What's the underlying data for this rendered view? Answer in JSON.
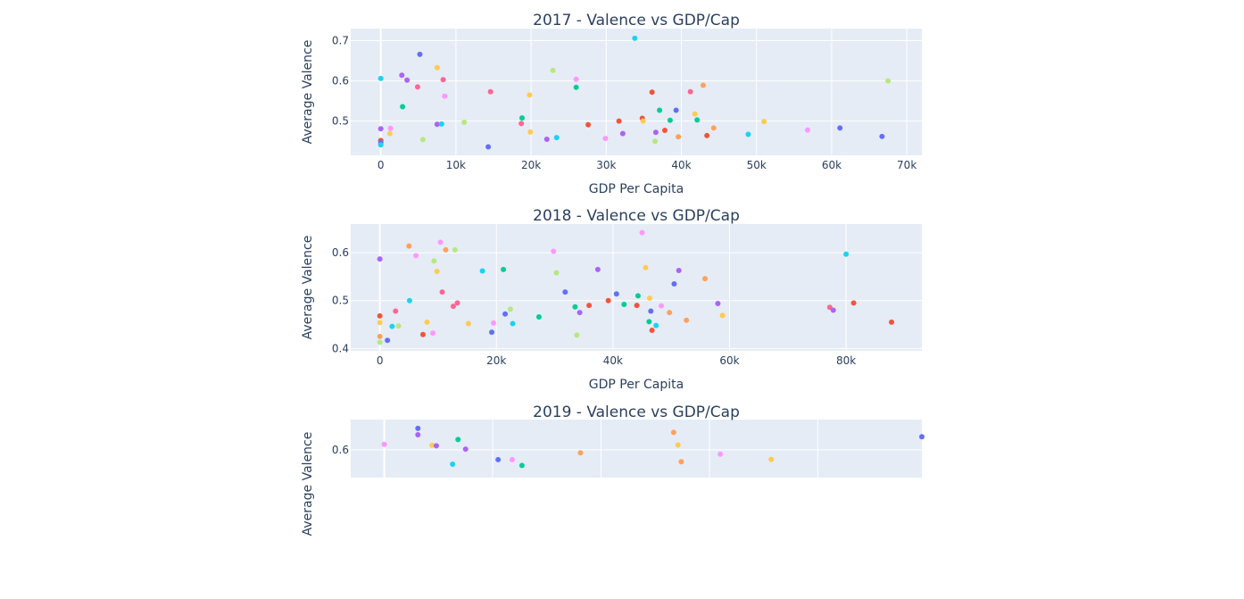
{
  "chart_data": [
    {
      "type": "scatter",
      "title": "2017 - Valence vs GDP/Cap",
      "xlabel": "GDP Per Capita",
      "ylabel": "Average Valence",
      "xlim": [
        -4000,
        72000
      ],
      "ylim": [
        0.415,
        0.73
      ],
      "x_ticks": [
        0,
        10000,
        20000,
        30000,
        40000,
        50000,
        60000,
        70000
      ],
      "x_tick_labels": [
        "0",
        "10k",
        "20k",
        "30k",
        "40k",
        "50k",
        "60k",
        "70k"
      ],
      "y_ticks": [
        0.5,
        0.6,
        0.7
      ],
      "y_tick_labels": [
        "0.5",
        "0.6",
        "0.7"
      ],
      "grid": true,
      "points": [
        {
          "x": 0,
          "y": 0.606,
          "color": "#19d3f3"
        },
        {
          "x": 0,
          "y": 0.481,
          "color": "#ab63fa"
        },
        {
          "x": 0,
          "y": 0.452,
          "color": "#ef553b"
        },
        {
          "x": 0,
          "y": 0.447,
          "color": "#636efa"
        },
        {
          "x": 0,
          "y": 0.441,
          "color": "#19d3f3"
        },
        {
          "x": 1200,
          "y": 0.469,
          "color": "#fecb52"
        },
        {
          "x": 1300,
          "y": 0.482,
          "color": "#ff97ff"
        },
        {
          "x": 2800,
          "y": 0.614,
          "color": "#ab63fa"
        },
        {
          "x": 2900,
          "y": 0.536,
          "color": "#00cc96"
        },
        {
          "x": 3500,
          "y": 0.602,
          "color": "#ab63fa"
        },
        {
          "x": 4900,
          "y": 0.585,
          "color": "#ff6692"
        },
        {
          "x": 5200,
          "y": 0.666,
          "color": "#636efa"
        },
        {
          "x": 5600,
          "y": 0.454,
          "color": "#b6e880"
        },
        {
          "x": 7500,
          "y": 0.633,
          "color": "#fecb52"
        },
        {
          "x": 7500,
          "y": 0.492,
          "color": "#ab63fa"
        },
        {
          "x": 8100,
          "y": 0.493,
          "color": "#19d3f3"
        },
        {
          "x": 8300,
          "y": 0.603,
          "color": "#ff6692"
        },
        {
          "x": 8500,
          "y": 0.562,
          "color": "#ff97ff"
        },
        {
          "x": 11100,
          "y": 0.497,
          "color": "#b6e880"
        },
        {
          "x": 14300,
          "y": 0.436,
          "color": "#636efa"
        },
        {
          "x": 14600,
          "y": 0.573,
          "color": "#ff6692"
        },
        {
          "x": 18700,
          "y": 0.494,
          "color": "#ff6692"
        },
        {
          "x": 18800,
          "y": 0.508,
          "color": "#00cc96"
        },
        {
          "x": 19800,
          "y": 0.565,
          "color": "#fecb52"
        },
        {
          "x": 19900,
          "y": 0.473,
          "color": "#fecb52"
        },
        {
          "x": 22100,
          "y": 0.455,
          "color": "#ab63fa"
        },
        {
          "x": 22900,
          "y": 0.626,
          "color": "#b6e880"
        },
        {
          "x": 23400,
          "y": 0.459,
          "color": "#19d3f3"
        },
        {
          "x": 26000,
          "y": 0.604,
          "color": "#ff97ff"
        },
        {
          "x": 26000,
          "y": 0.584,
          "color": "#00cc96"
        },
        {
          "x": 27600,
          "y": 0.491,
          "color": "#ef553b"
        },
        {
          "x": 29900,
          "y": 0.457,
          "color": "#ff97ff"
        },
        {
          "x": 31700,
          "y": 0.5,
          "color": "#ef553b"
        },
        {
          "x": 32200,
          "y": 0.469,
          "color": "#ab63fa"
        },
        {
          "x": 33800,
          "y": 0.706,
          "color": "#19d3f3"
        },
        {
          "x": 34800,
          "y": 0.507,
          "color": "#ef553b"
        },
        {
          "x": 34900,
          "y": 0.5,
          "color": "#fecb52"
        },
        {
          "x": 36100,
          "y": 0.572,
          "color": "#ef553b"
        },
        {
          "x": 36500,
          "y": 0.45,
          "color": "#b6e880"
        },
        {
          "x": 36600,
          "y": 0.472,
          "color": "#ab63fa"
        },
        {
          "x": 37100,
          "y": 0.527,
          "color": "#00cc96"
        },
        {
          "x": 37800,
          "y": 0.477,
          "color": "#ef553b"
        },
        {
          "x": 38500,
          "y": 0.502,
          "color": "#00cc96"
        },
        {
          "x": 39300,
          "y": 0.527,
          "color": "#636efa"
        },
        {
          "x": 39600,
          "y": 0.461,
          "color": "#ffa15a"
        },
        {
          "x": 41200,
          "y": 0.573,
          "color": "#ff6692"
        },
        {
          "x": 41800,
          "y": 0.518,
          "color": "#fecb52"
        },
        {
          "x": 42100,
          "y": 0.503,
          "color": "#00cc96"
        },
        {
          "x": 42900,
          "y": 0.589,
          "color": "#ffa15a"
        },
        {
          "x": 43400,
          "y": 0.464,
          "color": "#ef553b"
        },
        {
          "x": 44300,
          "y": 0.483,
          "color": "#ffa15a"
        },
        {
          "x": 48900,
          "y": 0.467,
          "color": "#19d3f3"
        },
        {
          "x": 51000,
          "y": 0.499,
          "color": "#fecb52"
        },
        {
          "x": 56800,
          "y": 0.478,
          "color": "#ff97ff"
        },
        {
          "x": 61100,
          "y": 0.483,
          "color": "#636efa"
        },
        {
          "x": 66700,
          "y": 0.462,
          "color": "#636efa"
        },
        {
          "x": 67500,
          "y": 0.6,
          "color": "#b6e880"
        }
      ]
    },
    {
      "type": "scatter",
      "title": "2018 - Valence vs GDP/Cap",
      "xlabel": "GDP Per Capita",
      "ylabel": "Average Valence",
      "xlim": [
        -5000,
        93000
      ],
      "ylim": [
        0.395,
        0.66
      ],
      "x_ticks": [
        0,
        20000,
        40000,
        60000,
        80000
      ],
      "x_tick_labels": [
        "0",
        "20k",
        "40k",
        "60k",
        "80k"
      ],
      "y_ticks": [
        0.4,
        0.5,
        0.6
      ],
      "y_tick_labels": [
        "0.4",
        "0.5",
        "0.6"
      ],
      "grid": true,
      "points": [
        {
          "x": 0,
          "y": 0.587,
          "color": "#ab63fa"
        },
        {
          "x": 0,
          "y": 0.468,
          "color": "#ef553b"
        },
        {
          "x": 0,
          "y": 0.454,
          "color": "#fecb52"
        },
        {
          "x": 0,
          "y": 0.425,
          "color": "#ffa15a"
        },
        {
          "x": 0,
          "y": 0.413,
          "color": "#b6e880"
        },
        {
          "x": 1300,
          "y": 0.417,
          "color": "#636efa"
        },
        {
          "x": 2100,
          "y": 0.446,
          "color": "#19d3f3"
        },
        {
          "x": 2700,
          "y": 0.478,
          "color": "#ff6692"
        },
        {
          "x": 3200,
          "y": 0.447,
          "color": "#b6e880"
        },
        {
          "x": 5000,
          "y": 0.614,
          "color": "#ffa15a"
        },
        {
          "x": 5100,
          "y": 0.5,
          "color": "#19d3f3"
        },
        {
          "x": 6200,
          "y": 0.594,
          "color": "#ff97ff"
        },
        {
          "x": 7400,
          "y": 0.429,
          "color": "#ef553b"
        },
        {
          "x": 8100,
          "y": 0.455,
          "color": "#fecb52"
        },
        {
          "x": 9100,
          "y": 0.432,
          "color": "#ff97ff"
        },
        {
          "x": 9300,
          "y": 0.583,
          "color": "#b6e880"
        },
        {
          "x": 9800,
          "y": 0.561,
          "color": "#fecb52"
        },
        {
          "x": 10400,
          "y": 0.622,
          "color": "#ff97ff"
        },
        {
          "x": 10700,
          "y": 0.518,
          "color": "#ff6692"
        },
        {
          "x": 11300,
          "y": 0.606,
          "color": "#ffa15a"
        },
        {
          "x": 12600,
          "y": 0.488,
          "color": "#ff6692"
        },
        {
          "x": 12900,
          "y": 0.606,
          "color": "#b6e880"
        },
        {
          "x": 13300,
          "y": 0.495,
          "color": "#ff6692"
        },
        {
          "x": 15200,
          "y": 0.452,
          "color": "#fecb52"
        },
        {
          "x": 17600,
          "y": 0.562,
          "color": "#19d3f3"
        },
        {
          "x": 19200,
          "y": 0.434,
          "color": "#636efa"
        },
        {
          "x": 19500,
          "y": 0.453,
          "color": "#ff97ff"
        },
        {
          "x": 21200,
          "y": 0.565,
          "color": "#00cc96"
        },
        {
          "x": 21500,
          "y": 0.472,
          "color": "#636efa"
        },
        {
          "x": 22400,
          "y": 0.482,
          "color": "#b6e880"
        },
        {
          "x": 22800,
          "y": 0.452,
          "color": "#19d3f3"
        },
        {
          "x": 27300,
          "y": 0.466,
          "color": "#00cc96"
        },
        {
          "x": 29800,
          "y": 0.603,
          "color": "#ff97ff"
        },
        {
          "x": 30300,
          "y": 0.558,
          "color": "#b6e880"
        },
        {
          "x": 31800,
          "y": 0.518,
          "color": "#636efa"
        },
        {
          "x": 33500,
          "y": 0.487,
          "color": "#00cc96"
        },
        {
          "x": 33800,
          "y": 0.428,
          "color": "#b6e880"
        },
        {
          "x": 34300,
          "y": 0.475,
          "color": "#ab63fa"
        },
        {
          "x": 35900,
          "y": 0.49,
          "color": "#ef553b"
        },
        {
          "x": 37400,
          "y": 0.565,
          "color": "#ab63fa"
        },
        {
          "x": 39200,
          "y": 0.5,
          "color": "#ef553b"
        },
        {
          "x": 40600,
          "y": 0.514,
          "color": "#636efa"
        },
        {
          "x": 41900,
          "y": 0.492,
          "color": "#00cc96"
        },
        {
          "x": 44100,
          "y": 0.49,
          "color": "#ef553b"
        },
        {
          "x": 44300,
          "y": 0.51,
          "color": "#00cc96"
        },
        {
          "x": 45000,
          "y": 0.642,
          "color": "#ff97ff"
        },
        {
          "x": 45600,
          "y": 0.569,
          "color": "#fecb52"
        },
        {
          "x": 46300,
          "y": 0.505,
          "color": "#fecb52"
        },
        {
          "x": 46500,
          "y": 0.478,
          "color": "#636efa"
        },
        {
          "x": 46200,
          "y": 0.456,
          "color": "#00cc96"
        },
        {
          "x": 46700,
          "y": 0.438,
          "color": "#ef553b"
        },
        {
          "x": 47400,
          "y": 0.448,
          "color": "#19d3f3"
        },
        {
          "x": 48300,
          "y": 0.489,
          "color": "#ff97ff"
        },
        {
          "x": 49700,
          "y": 0.475,
          "color": "#ffa15a"
        },
        {
          "x": 50500,
          "y": 0.535,
          "color": "#636efa"
        },
        {
          "x": 51300,
          "y": 0.563,
          "color": "#ab63fa"
        },
        {
          "x": 52600,
          "y": 0.459,
          "color": "#ffa15a"
        },
        {
          "x": 55800,
          "y": 0.546,
          "color": "#ffa15a"
        },
        {
          "x": 58000,
          "y": 0.494,
          "color": "#ab63fa"
        },
        {
          "x": 58800,
          "y": 0.469,
          "color": "#fecb52"
        },
        {
          "x": 77200,
          "y": 0.486,
          "color": "#ff6692"
        },
        {
          "x": 77800,
          "y": 0.48,
          "color": "#ab63fa"
        },
        {
          "x": 80000,
          "y": 0.597,
          "color": "#19d3f3"
        },
        {
          "x": 81300,
          "y": 0.495,
          "color": "#ef553b"
        },
        {
          "x": 87800,
          "y": 0.455,
          "color": "#ef553b"
        }
      ]
    },
    {
      "type": "scatter",
      "title": "2019 - Valence vs GDP/Cap",
      "xlabel": "",
      "ylabel": "Average Valence",
      "xlim": [
        -3100,
        49600
      ],
      "ylim": [
        0.49,
        0.72
      ],
      "x_ticks": [
        0,
        10000,
        20000,
        30000,
        40000
      ],
      "x_tick_labels": [],
      "y_ticks": [
        0.6
      ],
      "y_tick_labels": [
        "0.6"
      ],
      "grid": true,
      "points": [
        {
          "x": 0,
          "y": 0.622,
          "color": "#ff97ff"
        },
        {
          "x": 3100,
          "y": 0.685,
          "color": "#636efa"
        },
        {
          "x": 3100,
          "y": 0.66,
          "color": "#ab63fa"
        },
        {
          "x": 4400,
          "y": 0.618,
          "color": "#fecb52"
        },
        {
          "x": 4800,
          "y": 0.616,
          "color": "#ab63fa"
        },
        {
          "x": 6300,
          "y": 0.543,
          "color": "#19d3f3"
        },
        {
          "x": 6800,
          "y": 0.641,
          "color": "#00cc96"
        },
        {
          "x": 7500,
          "y": 0.603,
          "color": "#ab63fa"
        },
        {
          "x": 10500,
          "y": 0.561,
          "color": "#636efa"
        },
        {
          "x": 11800,
          "y": 0.561,
          "color": "#ff97ff"
        },
        {
          "x": 12700,
          "y": 0.538,
          "color": "#00cc96"
        },
        {
          "x": 18100,
          "y": 0.588,
          "color": "#ffa15a"
        },
        {
          "x": 26700,
          "y": 0.669,
          "color": "#ffa15a"
        },
        {
          "x": 27100,
          "y": 0.619,
          "color": "#fecb52"
        },
        {
          "x": 27400,
          "y": 0.553,
          "color": "#ffa15a"
        },
        {
          "x": 31000,
          "y": 0.583,
          "color": "#ff97ff"
        },
        {
          "x": 35700,
          "y": 0.562,
          "color": "#fecb52"
        },
        {
          "x": 49600,
          "y": 0.652,
          "color": "#636efa"
        }
      ]
    }
  ]
}
